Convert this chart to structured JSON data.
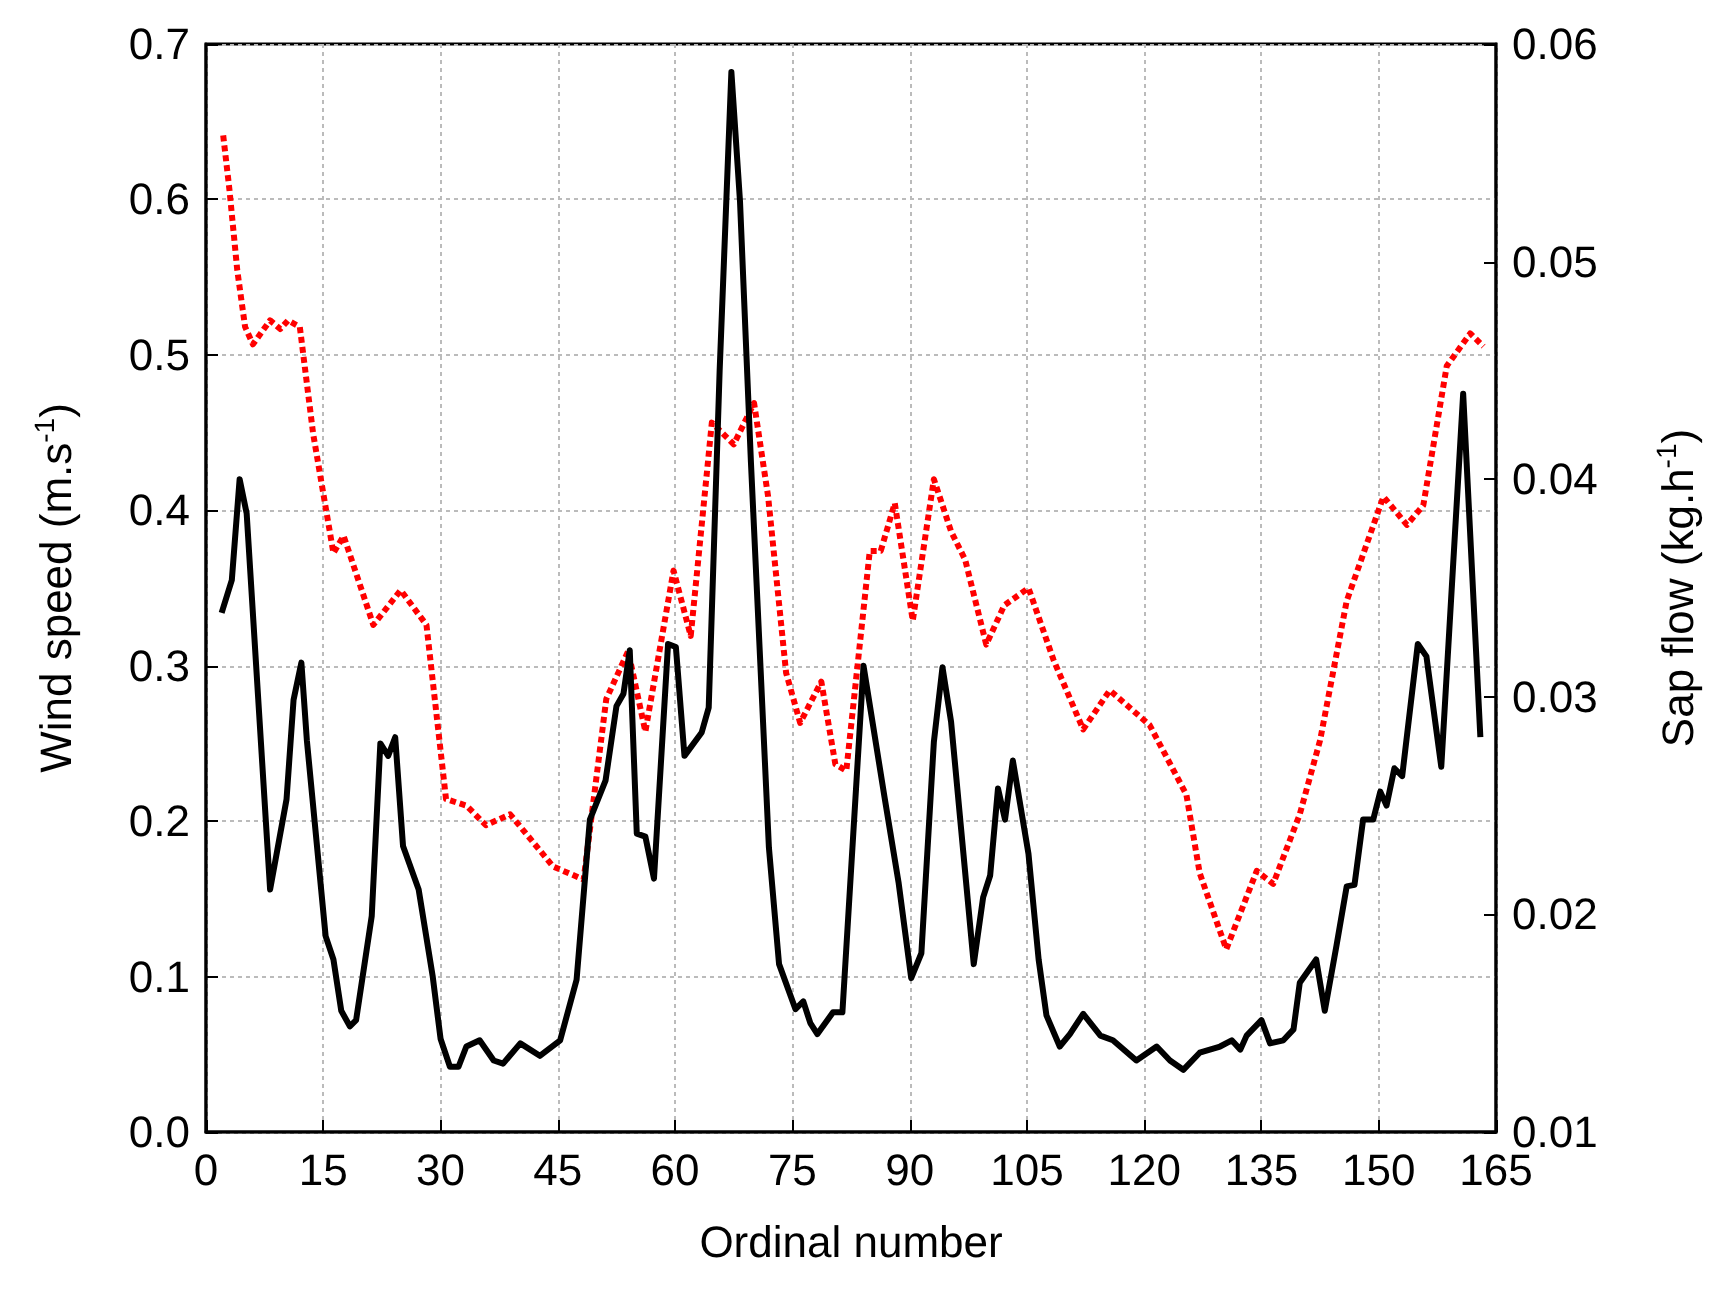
{
  "chart_data": {
    "type": "line",
    "xlabel": "Ordinal number",
    "ylabel": "Wind speed (m.s$^{-1}$)",
    "y2label": "Sap flow (kg.h$^{-1}$)",
    "xlim": [
      0,
      165
    ],
    "xticks": [
      0,
      15,
      30,
      45,
      60,
      75,
      90,
      105,
      120,
      135,
      150,
      165
    ],
    "ylim": [
      0,
      0.7
    ],
    "yticks": [
      {
        "value": 0,
        "label": "0.0"
      },
      0.1,
      0.2,
      0.3,
      0.4,
      0.5,
      0.6,
      0.7
    ],
    "y2lim": [
      0.01,
      0.06
    ],
    "y2ticks": [
      0.01,
      0.02,
      0.03,
      0.04,
      0.05,
      0.06
    ],
    "grid": true,
    "marker": "none",
    "series": [
      {
        "color": "#000000",
        "line_style": "solid",
        "x": [
          2,
          3.3,
          4.3,
          5.2,
          8.2,
          10.3,
          11.2,
          12.2,
          12.9,
          15.3,
          16.3,
          17.3,
          18.4,
          19.2,
          21.2,
          22.3,
          23.3,
          24.2,
          25.2,
          27.2,
          29,
          30,
          31.2,
          32.3,
          33.3,
          35,
          36.8,
          38,
          40.2,
          42.7,
          45.3,
          47.4,
          49.1,
          51.1,
          52.5,
          53.4,
          54.2,
          55.1,
          56.2,
          57.3,
          59.1,
          60.1,
          61.2,
          63.4,
          64.3,
          65.7,
          67.2,
          68.3,
          69.7,
          72,
          73.3,
          75.4,
          76.4,
          77.3,
          78.2,
          80.2,
          81.4,
          84.1,
          86.8,
          88.6,
          90.2,
          91.5,
          93.1,
          94.2,
          95.3,
          98.2,
          99.4,
          100.3,
          101.3,
          102.2,
          103.2,
          105.2,
          106.5,
          107.5,
          109.2,
          110.5,
          112.2,
          114.4,
          116,
          119,
          121.6,
          123.3,
          125,
          127.1,
          129.7,
          131.2,
          132.3,
          133.1,
          135,
          136.1,
          137.8,
          139.1,
          139.9,
          142,
          143.1,
          144.6,
          145.9,
          146.9,
          148,
          149.3,
          150.2,
          151,
          152,
          153,
          155,
          156.1,
          158,
          160.8,
          163
        ],
        "values": [
          0.334,
          0.355,
          0.42,
          0.398,
          0.156,
          0.214,
          0.278,
          0.302,
          0.252,
          0.126,
          0.111,
          0.078,
          0.068,
          0.072,
          0.139,
          0.25,
          0.242,
          0.254,
          0.184,
          0.156,
          0.1,
          0.06,
          0.042,
          0.042,
          0.055,
          0.059,
          0.046,
          0.044,
          0.057,
          0.049,
          0.059,
          0.098,
          0.201,
          0.226,
          0.274,
          0.282,
          0.31,
          0.192,
          0.19,
          0.163,
          0.314,
          0.312,
          0.242,
          0.257,
          0.273,
          0.49,
          0.682,
          0.599,
          0.431,
          0.183,
          0.108,
          0.079,
          0.084,
          0.07,
          0.063,
          0.077,
          0.077,
          0.3,
          0.215,
          0.16,
          0.099,
          0.115,
          0.251,
          0.299,
          0.264,
          0.108,
          0.151,
          0.165,
          0.221,
          0.201,
          0.239,
          0.179,
          0.111,
          0.075,
          0.055,
          0.063,
          0.076,
          0.062,
          0.059,
          0.046,
          0.055,
          0.046,
          0.04,
          0.051,
          0.055,
          0.059,
          0.053,
          0.062,
          0.072,
          0.057,
          0.059,
          0.066,
          0.096,
          0.111,
          0.078,
          0.12,
          0.158,
          0.159,
          0.201,
          0.201,
          0.219,
          0.21,
          0.234,
          0.229,
          0.314,
          0.306,
          0.235,
          0.475,
          0.254
        ]
      },
      {
        "color": "#ff0000",
        "line_style": "dotted",
        "axis": "y2",
        "x": [
          2.2,
          3,
          4,
          5,
          6,
          8.2,
          9.5,
          10.5,
          12,
          13.7,
          16.3,
          17.6,
          21.4,
          24.9,
          28.2,
          30.7,
          33.3,
          35.8,
          38.9,
          44.4,
          48.3,
          51.2,
          54,
          56.2,
          59.8,
          62,
          64.7,
          67.5,
          70.1,
          71.9,
          74.2,
          76,
          78.7,
          80.5,
          81.9,
          84.9,
          86.3,
          88.1,
          90.4,
          93.1,
          95.3,
          97.1,
          99.8,
          102.1,
          105.2,
          108.4,
          112.2,
          115.6,
          120.7,
          125.4,
          127.1,
          130.5,
          134.4,
          136.5,
          139.9,
          142.5,
          145.9,
          150.6,
          153.6,
          155.7,
          158.7,
          161.7,
          163.4
        ],
        "values": [
          0.0558,
          0.0533,
          0.0496,
          0.047,
          0.0462,
          0.0473,
          0.0469,
          0.0473,
          0.047,
          0.0421,
          0.0366,
          0.0374,
          0.0333,
          0.0349,
          0.0333,
          0.0253,
          0.025,
          0.0241,
          0.0246,
          0.0222,
          0.0216,
          0.0299,
          0.0321,
          0.0284,
          0.0358,
          0.0328,
          0.0426,
          0.0416,
          0.0435,
          0.0392,
          0.0311,
          0.0288,
          0.0307,
          0.0269,
          0.0266,
          0.0367,
          0.0367,
          0.0389,
          0.0335,
          0.04,
          0.0376,
          0.0363,
          0.0324,
          0.0342,
          0.035,
          0.0317,
          0.0285,
          0.0303,
          0.0287,
          0.0255,
          0.0219,
          0.0184,
          0.022,
          0.0214,
          0.0246,
          0.028,
          0.0344,
          0.0392,
          0.0379,
          0.0388,
          0.0452,
          0.0467,
          0.0461
        ]
      }
    ]
  }
}
